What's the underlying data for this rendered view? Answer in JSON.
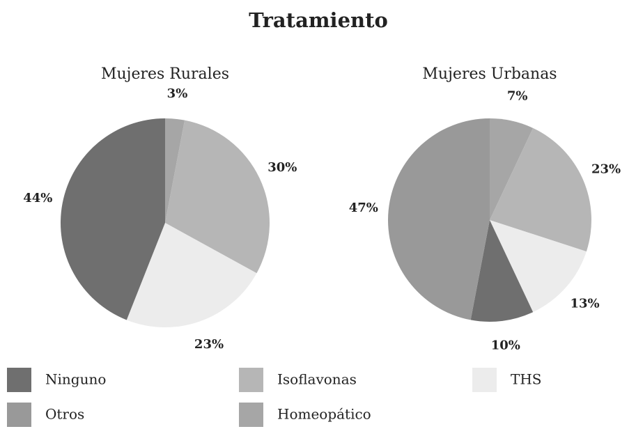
{
  "title": "Tratamiento",
  "legend": [
    {
      "name": "Ninguno",
      "color": "#6f6f6f"
    },
    {
      "name": "Isoflavonas",
      "color": "#b6b6b6"
    },
    {
      "name": "THS",
      "color": "#ececec"
    },
    {
      "name": "Otros",
      "color": "#999999"
    },
    {
      "name": "Homeopático",
      "color": "#a6a6a6"
    }
  ],
  "chart_data": [
    {
      "type": "pie",
      "title": "Mujeres Rurales",
      "values": [
        3,
        30,
        23,
        44
      ],
      "value_labels": [
        "3%",
        "30%",
        "23%",
        "44%"
      ],
      "colors": [
        "#a6a6a6",
        "#b6b6b6",
        "#ececec",
        "#6f6f6f"
      ]
    },
    {
      "type": "pie",
      "title": "Mujeres Urbanas",
      "values": [
        7,
        23,
        13,
        10,
        47
      ],
      "value_labels": [
        "7%",
        "23%",
        "13%",
        "10%",
        "47%"
      ],
      "colors": [
        "#a6a6a6",
        "#b6b6b6",
        "#ececec",
        "#6f6f6f",
        "#999999"
      ]
    }
  ]
}
